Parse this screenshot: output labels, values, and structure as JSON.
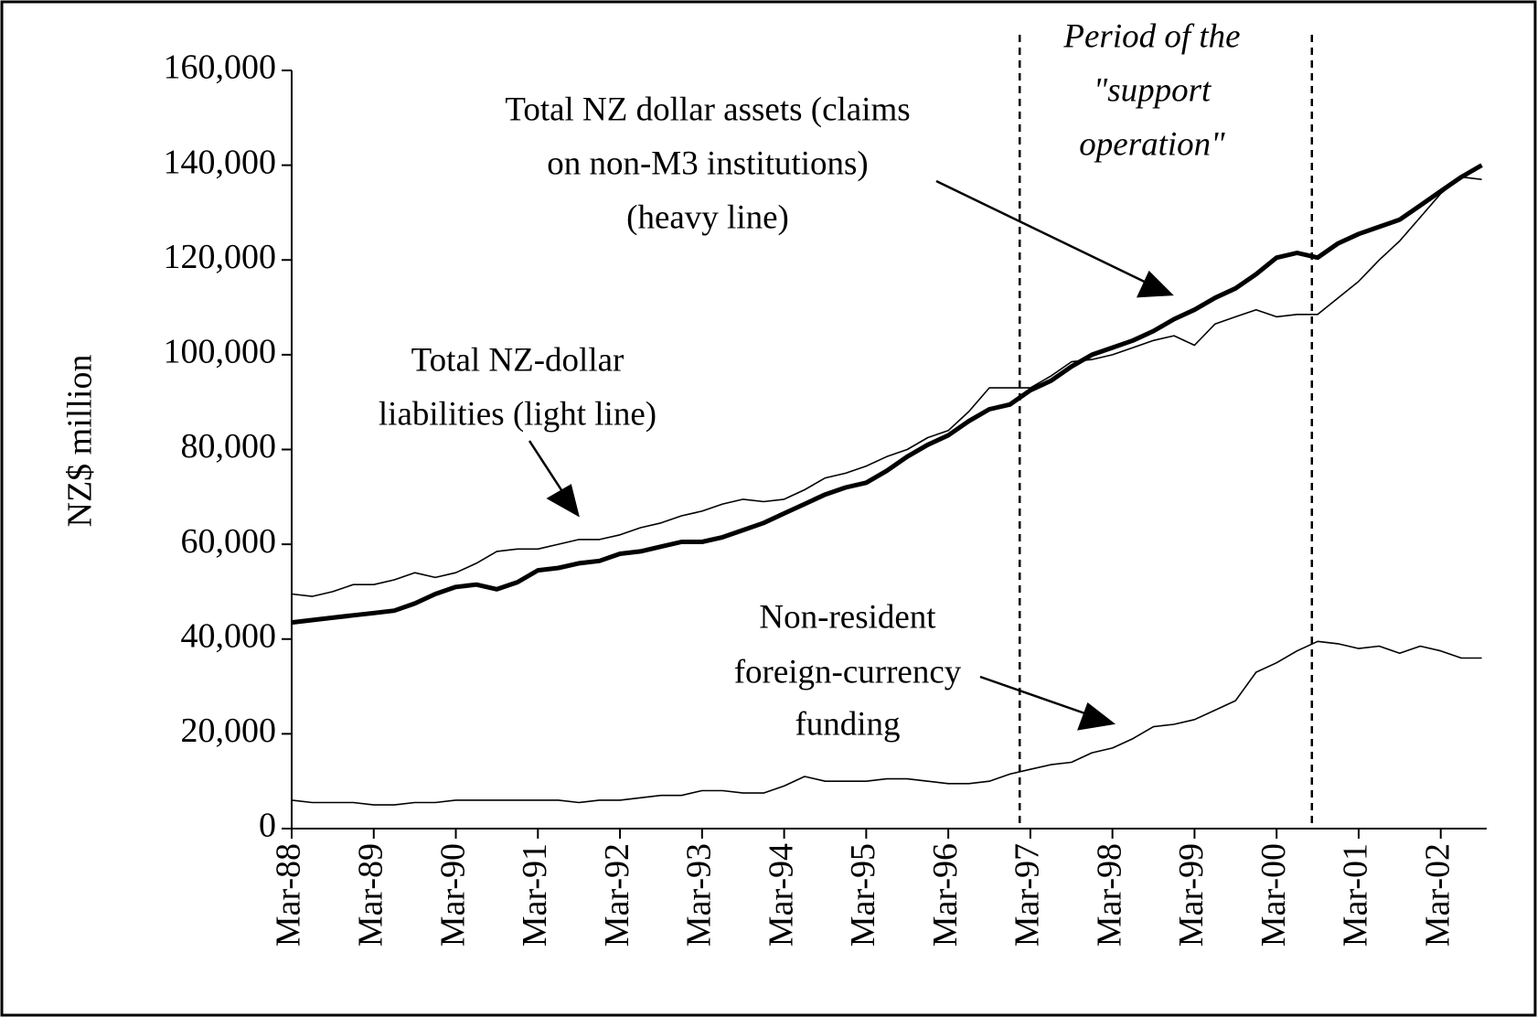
{
  "chart_data": {
    "type": "line",
    "y_label": "NZ$ million",
    "x": [
      1988,
      1988.25,
      1988.5,
      1988.75,
      1989,
      1989.25,
      1989.5,
      1989.75,
      1990,
      1990.25,
      1990.5,
      1990.75,
      1991,
      1991.25,
      1991.5,
      1991.75,
      1992,
      1992.25,
      1992.5,
      1992.75,
      1993,
      1993.25,
      1993.5,
      1993.75,
      1994,
      1994.25,
      1994.5,
      1994.75,
      1995,
      1995.25,
      1995.5,
      1995.75,
      1996,
      1996.25,
      1996.5,
      1996.75,
      1997,
      1997.25,
      1997.5,
      1997.75,
      1998,
      1998.25,
      1998.5,
      1998.75,
      1999,
      1999.25,
      1999.5,
      1999.75,
      2000,
      2000.25,
      2000.5,
      2000.75,
      2001,
      2001.25,
      2001.5,
      2001.75,
      2002,
      2002.25,
      2002.5
    ],
    "series": [
      {
        "color": "#000000",
        "line_width": 5,
        "values": [
          43500,
          44000,
          44500,
          45000,
          45500,
          46000,
          47500,
          49500,
          51000,
          51500,
          50500,
          52000,
          54500,
          55000,
          56000,
          56500,
          58000,
          58500,
          59500,
          60500,
          60500,
          61500,
          63000,
          64500,
          66500,
          68500,
          70500,
          72000,
          73000,
          75500,
          78500,
          81000,
          83000,
          86000,
          88500,
          89500,
          92500,
          94500,
          97500,
          100000,
          101500,
          103000,
          105000,
          107500,
          109500,
          112000,
          114000,
          117000,
          120500,
          121500,
          120500,
          123500,
          125500,
          127000,
          128500,
          131500,
          134500,
          137500,
          140000
        ]
      },
      {
        "color": "#000000",
        "line_width": 1.6,
        "values": [
          49500,
          49000,
          50000,
          51500,
          51500,
          52500,
          54000,
          53000,
          54000,
          56000,
          58500,
          59000,
          59000,
          60000,
          61000,
          61000,
          62000,
          63500,
          64500,
          66000,
          67000,
          68500,
          69500,
          69000,
          69500,
          71500,
          74000,
          75000,
          76500,
          78500,
          80000,
          82500,
          84000,
          88000,
          93000,
          93000,
          93000,
          95500,
          98500,
          99000,
          100000,
          101500,
          103000,
          104000,
          102000,
          106500,
          108000,
          109500,
          108000,
          108500,
          108500,
          112000,
          115500,
          120000,
          124000,
          129000,
          134000,
          137500,
          137000
        ]
      },
      {
        "color": "#000000",
        "line_width": 1.6,
        "values": [
          6000,
          5500,
          5500,
          5500,
          5000,
          5000,
          5500,
          5500,
          6000,
          6000,
          6000,
          6000,
          6000,
          6000,
          5500,
          6000,
          6000,
          6500,
          7000,
          7000,
          8000,
          8000,
          7500,
          7500,
          9000,
          11000,
          10000,
          10000,
          10000,
          10500,
          10500,
          10000,
          9500,
          9500,
          10000,
          11500,
          12500,
          13500,
          14000,
          16000,
          17000,
          19000,
          21500,
          22000,
          23000,
          25000,
          27000,
          33000,
          35000,
          37500,
          39500,
          39000,
          38000,
          38500,
          37000,
          38500,
          37500,
          36000,
          36000
        ]
      }
    ],
    "xlim": [
      1988,
      2002.56
    ],
    "xticks": [
      {
        "value": 1988,
        "label": "Mar-88"
      },
      {
        "value": 1989,
        "label": "Mar-89"
      },
      {
        "value": 1990,
        "label": "Mar-90"
      },
      {
        "value": 1991,
        "label": "Mar-91"
      },
      {
        "value": 1992,
        "label": "Mar-92"
      },
      {
        "value": 1993,
        "label": "Mar-93"
      },
      {
        "value": 1994,
        "label": "Mar-94"
      },
      {
        "value": 1995,
        "label": "Mar-95"
      },
      {
        "value": 1996,
        "label": "Mar-96"
      },
      {
        "value": 1997,
        "label": "Mar-97"
      },
      {
        "value": 1998,
        "label": "Mar-98"
      },
      {
        "value": 1999,
        "label": "Mar-99"
      },
      {
        "value": 2000,
        "label": "Mar-00"
      },
      {
        "value": 2001,
        "label": "Mar-01"
      },
      {
        "value": 2002,
        "label": "Mar-02"
      }
    ],
    "ylim": [
      0,
      160000
    ],
    "yticks": [
      0,
      {
        "value": 20000,
        "label": "20,000"
      },
      {
        "value": 40000,
        "label": "40,000"
      },
      {
        "value": 60000,
        "label": "60,000"
      },
      {
        "value": 80000,
        "label": "80,000"
      },
      {
        "value": 100000,
        "label": "100,000"
      },
      {
        "value": 120000,
        "label": "120,000"
      },
      {
        "value": 140000,
        "label": "140,000"
      },
      {
        "value": 160000,
        "label": "160,000"
      }
    ],
    "grid": false,
    "vlines": [
      1996.87,
      2000.43
    ],
    "annotations": [
      [
        "Period of the",
        "\"support",
        "operation\""
      ],
      [
        "Total NZ dollar assets (claims",
        "on non-M3 institutions)",
        "(heavy line)"
      ],
      [
        "Total NZ-dollar",
        "liabilities (light line)"
      ],
      [
        "Non-resident",
        "foreign-currency",
        "funding"
      ]
    ]
  }
}
